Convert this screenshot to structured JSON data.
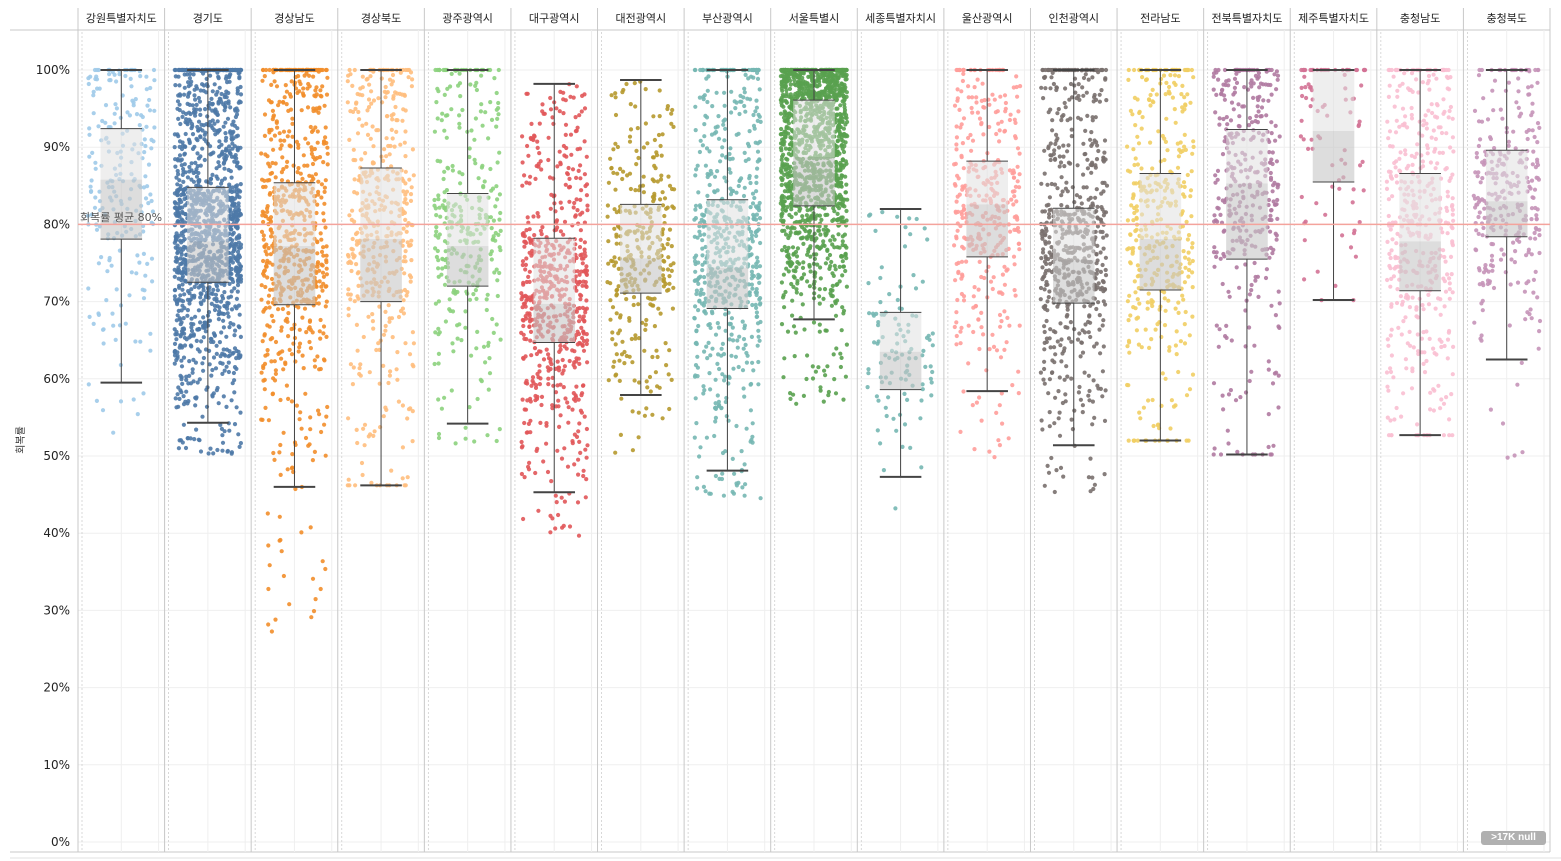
{
  "chart_data": {
    "type": "box-jitter",
    "title": "",
    "ylabel": "회복률",
    "xlabel": "",
    "ylim": [
      0,
      100
    ],
    "y_ticks": [
      "0%",
      "10%",
      "20%",
      "30%",
      "40%",
      "50%",
      "60%",
      "70%",
      "80%",
      "90%",
      "100%"
    ],
    "grid": true,
    "reference_line": {
      "value": 80,
      "label": "회복률 평균 80%",
      "color": "#f4a39c"
    },
    "null_badge": ">17K null",
    "series": [
      {
        "name": "강원특별자치도",
        "color": "#9ecae9",
        "n": 220,
        "whisker_low": 59.5,
        "q1": 78.1,
        "median": 85.8,
        "q3": 92.4,
        "whisker_high": 100,
        "min": 52.8
      },
      {
        "name": "경기도",
        "color": "#4e79a7",
        "n": 2200,
        "whisker_low": 54.3,
        "q1": 72.5,
        "median": 77.8,
        "q3": 84.8,
        "whisker_high": 100,
        "min": 50.1
      },
      {
        "name": "경상남도",
        "color": "#f28e2b",
        "n": 700,
        "whisker_low": 46.0,
        "q1": 69.6,
        "median": 77.2,
        "q3": 85.4,
        "whisker_high": 100,
        "min": 27.0
      },
      {
        "name": "경상북도",
        "color": "#ffbe7d",
        "n": 450,
        "whisker_low": 46.2,
        "q1": 70.0,
        "median": 78.1,
        "q3": 87.3,
        "whisker_high": 100,
        "min": 46.2
      },
      {
        "name": "광주광역시",
        "color": "#8cd17d",
        "n": 330,
        "whisker_low": 54.2,
        "q1": 72.0,
        "median": 77.2,
        "q3": 84.0,
        "whisker_high": 100,
        "min": 51.3
      },
      {
        "name": "대구광역시",
        "color": "#e15759",
        "n": 650,
        "whisker_low": 45.3,
        "q1": 64.7,
        "median": 69.7,
        "q3": 78.2,
        "whisker_high": 98.2,
        "min": 38.8
      },
      {
        "name": "대전광역시",
        "color": "#b6992d",
        "n": 330,
        "whisker_low": 57.9,
        "q1": 71.1,
        "median": 75.6,
        "q3": 82.6,
        "whisker_high": 98.7,
        "min": 49.6
      },
      {
        "name": "부산광역시",
        "color": "#76b7b2",
        "n": 650,
        "whisker_low": 48.1,
        "q1": 69.1,
        "median": 74.4,
        "q3": 83.2,
        "whisker_high": 100,
        "min": 44.3
      },
      {
        "name": "서울특별시",
        "color": "#59a14f",
        "n": 1800,
        "whisker_low": 67.7,
        "q1": 82.4,
        "median": 88.7,
        "q3": 96.1,
        "whisker_high": 100,
        "min": 56.7
      },
      {
        "name": "세종특별자치시",
        "color": "#76b7b2",
        "n": 110,
        "whisker_low": 47.3,
        "q1": 58.6,
        "median": 63.5,
        "q3": 68.6,
        "whisker_high": 82.0,
        "min": 42.3
      },
      {
        "name": "울산광역시",
        "color": "#ff9d9a",
        "n": 380,
        "whisker_low": 58.4,
        "q1": 75.8,
        "median": 82.6,
        "q3": 88.2,
        "whisker_high": 100,
        "min": 49.5
      },
      {
        "name": "인천광역시",
        "color": "#79706e",
        "n": 650,
        "whisker_low": 51.4,
        "q1": 69.8,
        "median": 75.4,
        "q3": 82.1,
        "whisker_high": 100,
        "min": 44.7
      },
      {
        "name": "전라남도",
        "color": "#f1ce63",
        "n": 400,
        "whisker_low": 52.0,
        "q1": 71.5,
        "median": 78.1,
        "q3": 86.6,
        "whisker_high": 100,
        "min": 52.0
      },
      {
        "name": "전북특별자치도",
        "color": "#b07aa1",
        "n": 380,
        "whisker_low": 50.2,
        "q1": 75.5,
        "median": 85.3,
        "q3": 92.3,
        "whisker_high": 100,
        "min": 50.2
      },
      {
        "name": "제주특별자치도",
        "color": "#d37295",
        "n": 90,
        "whisker_low": 70.2,
        "q1": 85.5,
        "median": 92.1,
        "q3": 100,
        "whisker_high": 100,
        "min": 70.2
      },
      {
        "name": "충청남도",
        "color": "#fabfd2",
        "n": 450,
        "whisker_low": 52.7,
        "q1": 71.4,
        "median": 77.8,
        "q3": 86.6,
        "whisker_high": 100,
        "min": 52.7
      },
      {
        "name": "충청북도",
        "color": "#c594b8",
        "n": 300,
        "whisker_low": 62.5,
        "q1": 78.4,
        "median": 83.0,
        "q3": 89.6,
        "whisker_high": 100,
        "min": 44.9
      }
    ]
  }
}
